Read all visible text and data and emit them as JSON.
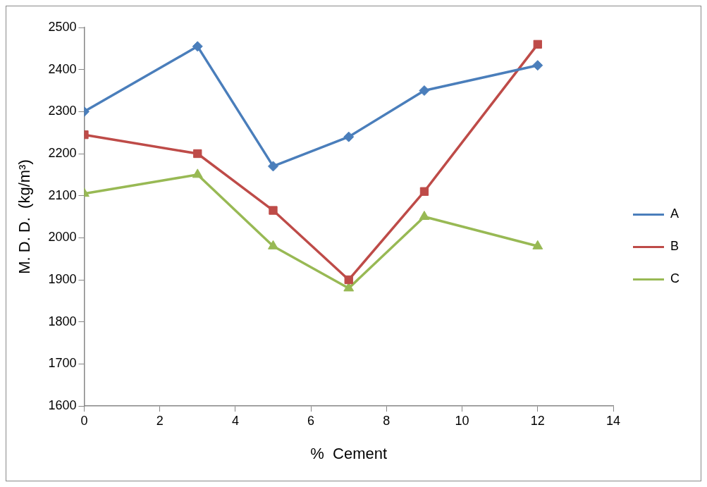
{
  "chart_data": {
    "type": "line",
    "xlabel": "%  Cement",
    "ylabel": "M. D. D.  (kg/m³)",
    "x": [
      0,
      3,
      5,
      7,
      9,
      12
    ],
    "series": [
      {
        "name": "A",
        "color": "#4a7ebb",
        "marker": "diamond",
        "values": [
          2300,
          2455,
          2170,
          2240,
          2350,
          2410
        ]
      },
      {
        "name": "B",
        "color": "#be4b48",
        "marker": "square",
        "values": [
          2245,
          2200,
          2065,
          1900,
          2110,
          2460
        ]
      },
      {
        "name": "C",
        "color": "#98b954",
        "marker": "triangle",
        "values": [
          2105,
          2150,
          1980,
          1880,
          2050,
          1980
        ]
      }
    ],
    "xlim": [
      0,
      14
    ],
    "xticks": [
      0,
      2,
      4,
      6,
      8,
      10,
      12,
      14
    ],
    "ylim": [
      1600,
      2500
    ],
    "yticks": [
      1600,
      1700,
      1800,
      1900,
      2000,
      2100,
      2200,
      2300,
      2400,
      2500
    ],
    "grid": false,
    "legend": "right",
    "line_style": "solid"
  }
}
